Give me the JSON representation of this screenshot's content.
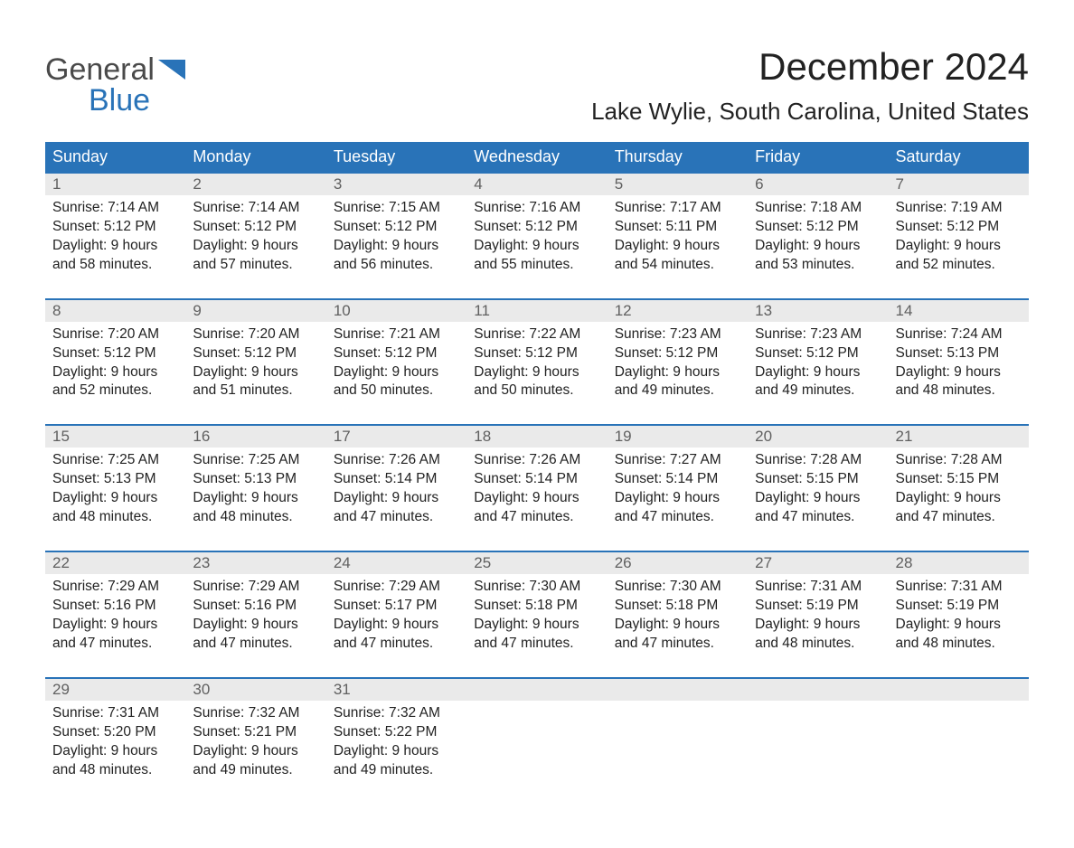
{
  "logo": {
    "word1": "General",
    "word2": "Blue"
  },
  "title": {
    "month": "December 2024",
    "location": "Lake Wylie, South Carolina, United States"
  },
  "colors": {
    "header_bg": "#2973b8",
    "header_text": "#ffffff",
    "date_bg": "#eaeaea",
    "date_border": "#2973b8",
    "date_text": "#606060",
    "body_text": "#222222",
    "logo_gray": "#4a4a4a",
    "logo_blue": "#2973b8",
    "page_bg": "#ffffff"
  },
  "weekdays": [
    "Sunday",
    "Monday",
    "Tuesday",
    "Wednesday",
    "Thursday",
    "Friday",
    "Saturday"
  ],
  "calendar": {
    "type": "table",
    "columns": 7,
    "weeks": [
      {
        "dates": [
          "1",
          "2",
          "3",
          "4",
          "5",
          "6",
          "7"
        ],
        "cells": [
          {
            "sunrise": "Sunrise: 7:14 AM",
            "sunset": "Sunset: 5:12 PM",
            "day1": "Daylight: 9 hours",
            "day2": "and 58 minutes."
          },
          {
            "sunrise": "Sunrise: 7:14 AM",
            "sunset": "Sunset: 5:12 PM",
            "day1": "Daylight: 9 hours",
            "day2": "and 57 minutes."
          },
          {
            "sunrise": "Sunrise: 7:15 AM",
            "sunset": "Sunset: 5:12 PM",
            "day1": "Daylight: 9 hours",
            "day2": "and 56 minutes."
          },
          {
            "sunrise": "Sunrise: 7:16 AM",
            "sunset": "Sunset: 5:12 PM",
            "day1": "Daylight: 9 hours",
            "day2": "and 55 minutes."
          },
          {
            "sunrise": "Sunrise: 7:17 AM",
            "sunset": "Sunset: 5:11 PM",
            "day1": "Daylight: 9 hours",
            "day2": "and 54 minutes."
          },
          {
            "sunrise": "Sunrise: 7:18 AM",
            "sunset": "Sunset: 5:12 PM",
            "day1": "Daylight: 9 hours",
            "day2": "and 53 minutes."
          },
          {
            "sunrise": "Sunrise: 7:19 AM",
            "sunset": "Sunset: 5:12 PM",
            "day1": "Daylight: 9 hours",
            "day2": "and 52 minutes."
          }
        ]
      },
      {
        "dates": [
          "8",
          "9",
          "10",
          "11",
          "12",
          "13",
          "14"
        ],
        "cells": [
          {
            "sunrise": "Sunrise: 7:20 AM",
            "sunset": "Sunset: 5:12 PM",
            "day1": "Daylight: 9 hours",
            "day2": "and 52 minutes."
          },
          {
            "sunrise": "Sunrise: 7:20 AM",
            "sunset": "Sunset: 5:12 PM",
            "day1": "Daylight: 9 hours",
            "day2": "and 51 minutes."
          },
          {
            "sunrise": "Sunrise: 7:21 AM",
            "sunset": "Sunset: 5:12 PM",
            "day1": "Daylight: 9 hours",
            "day2": "and 50 minutes."
          },
          {
            "sunrise": "Sunrise: 7:22 AM",
            "sunset": "Sunset: 5:12 PM",
            "day1": "Daylight: 9 hours",
            "day2": "and 50 minutes."
          },
          {
            "sunrise": "Sunrise: 7:23 AM",
            "sunset": "Sunset: 5:12 PM",
            "day1": "Daylight: 9 hours",
            "day2": "and 49 minutes."
          },
          {
            "sunrise": "Sunrise: 7:23 AM",
            "sunset": "Sunset: 5:12 PM",
            "day1": "Daylight: 9 hours",
            "day2": "and 49 minutes."
          },
          {
            "sunrise": "Sunrise: 7:24 AM",
            "sunset": "Sunset: 5:13 PM",
            "day1": "Daylight: 9 hours",
            "day2": "and 48 minutes."
          }
        ]
      },
      {
        "dates": [
          "15",
          "16",
          "17",
          "18",
          "19",
          "20",
          "21"
        ],
        "cells": [
          {
            "sunrise": "Sunrise: 7:25 AM",
            "sunset": "Sunset: 5:13 PM",
            "day1": "Daylight: 9 hours",
            "day2": "and 48 minutes."
          },
          {
            "sunrise": "Sunrise: 7:25 AM",
            "sunset": "Sunset: 5:13 PM",
            "day1": "Daylight: 9 hours",
            "day2": "and 48 minutes."
          },
          {
            "sunrise": "Sunrise: 7:26 AM",
            "sunset": "Sunset: 5:14 PM",
            "day1": "Daylight: 9 hours",
            "day2": "and 47 minutes."
          },
          {
            "sunrise": "Sunrise: 7:26 AM",
            "sunset": "Sunset: 5:14 PM",
            "day1": "Daylight: 9 hours",
            "day2": "and 47 minutes."
          },
          {
            "sunrise": "Sunrise: 7:27 AM",
            "sunset": "Sunset: 5:14 PM",
            "day1": "Daylight: 9 hours",
            "day2": "and 47 minutes."
          },
          {
            "sunrise": "Sunrise: 7:28 AM",
            "sunset": "Sunset: 5:15 PM",
            "day1": "Daylight: 9 hours",
            "day2": "and 47 minutes."
          },
          {
            "sunrise": "Sunrise: 7:28 AM",
            "sunset": "Sunset: 5:15 PM",
            "day1": "Daylight: 9 hours",
            "day2": "and 47 minutes."
          }
        ]
      },
      {
        "dates": [
          "22",
          "23",
          "24",
          "25",
          "26",
          "27",
          "28"
        ],
        "cells": [
          {
            "sunrise": "Sunrise: 7:29 AM",
            "sunset": "Sunset: 5:16 PM",
            "day1": "Daylight: 9 hours",
            "day2": "and 47 minutes."
          },
          {
            "sunrise": "Sunrise: 7:29 AM",
            "sunset": "Sunset: 5:16 PM",
            "day1": "Daylight: 9 hours",
            "day2": "and 47 minutes."
          },
          {
            "sunrise": "Sunrise: 7:29 AM",
            "sunset": "Sunset: 5:17 PM",
            "day1": "Daylight: 9 hours",
            "day2": "and 47 minutes."
          },
          {
            "sunrise": "Sunrise: 7:30 AM",
            "sunset": "Sunset: 5:18 PM",
            "day1": "Daylight: 9 hours",
            "day2": "and 47 minutes."
          },
          {
            "sunrise": "Sunrise: 7:30 AM",
            "sunset": "Sunset: 5:18 PM",
            "day1": "Daylight: 9 hours",
            "day2": "and 47 minutes."
          },
          {
            "sunrise": "Sunrise: 7:31 AM",
            "sunset": "Sunset: 5:19 PM",
            "day1": "Daylight: 9 hours",
            "day2": "and 48 minutes."
          },
          {
            "sunrise": "Sunrise: 7:31 AM",
            "sunset": "Sunset: 5:19 PM",
            "day1": "Daylight: 9 hours",
            "day2": "and 48 minutes."
          }
        ]
      },
      {
        "dates": [
          "29",
          "30",
          "31",
          "",
          "",
          "",
          ""
        ],
        "cells": [
          {
            "sunrise": "Sunrise: 7:31 AM",
            "sunset": "Sunset: 5:20 PM",
            "day1": "Daylight: 9 hours",
            "day2": "and 48 minutes."
          },
          {
            "sunrise": "Sunrise: 7:32 AM",
            "sunset": "Sunset: 5:21 PM",
            "day1": "Daylight: 9 hours",
            "day2": "and 49 minutes."
          },
          {
            "sunrise": "Sunrise: 7:32 AM",
            "sunset": "Sunset: 5:22 PM",
            "day1": "Daylight: 9 hours",
            "day2": "and 49 minutes."
          },
          null,
          null,
          null,
          null
        ]
      }
    ]
  }
}
